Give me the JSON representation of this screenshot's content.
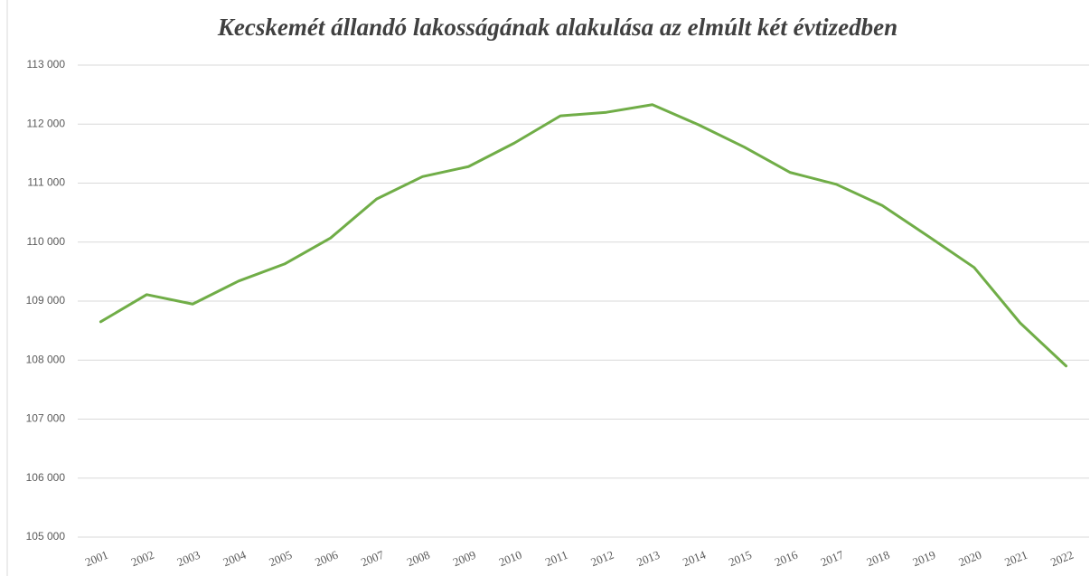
{
  "chart_data": {
    "type": "line",
    "title": "Kecskemét állandó lakosságának alakulása az elmúlt két évtizedben",
    "categories": [
      "2001",
      "2002",
      "2003",
      "2004",
      "2005",
      "2006",
      "2007",
      "2008",
      "2009",
      "2010",
      "2011",
      "2012",
      "2013",
      "2014",
      "2015",
      "2016",
      "2017",
      "2018",
      "2019",
      "2020",
      "2021",
      "2022"
    ],
    "series": [
      {
        "name": "Kecskemét",
        "color": "#70ad47",
        "values": [
          108650,
          109110,
          108950,
          109340,
          109630,
          110070,
          110730,
          111110,
          111280,
          111680,
          112140,
          112200,
          112330,
          111990,
          111610,
          111180,
          110980,
          110620,
          110100,
          109570,
          108630,
          107900
        ]
      }
    ],
    "ylim": [
      105000,
      113000
    ],
    "yticks": [
      {
        "value": 105000,
        "label": "105 000"
      },
      {
        "value": 106000,
        "label": "106 000"
      },
      {
        "value": 107000,
        "label": "107 000"
      },
      {
        "value": 108000,
        "label": "108 000"
      },
      {
        "value": 109000,
        "label": "109 000"
      },
      {
        "value": 110000,
        "label": "110 000"
      },
      {
        "value": 111000,
        "label": "111 000"
      },
      {
        "value": 112000,
        "label": "112 000"
      },
      {
        "value": 113000,
        "label": "113 000"
      }
    ],
    "grid": true
  }
}
